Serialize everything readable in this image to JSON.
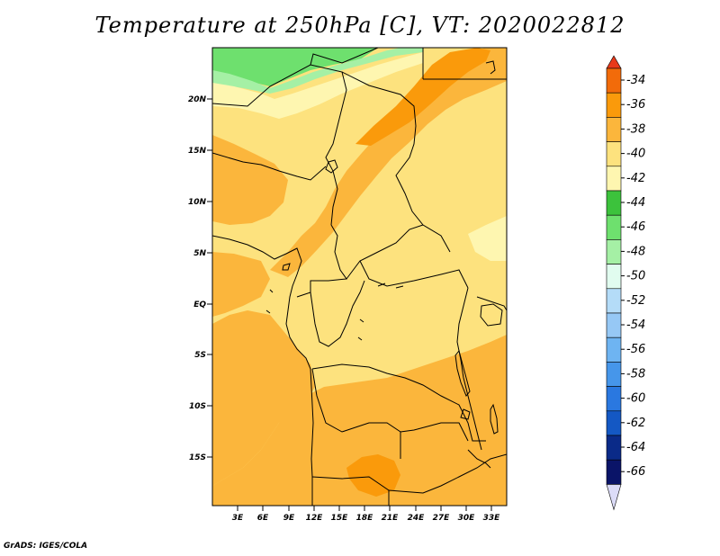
{
  "title": "Temperature at 250hPa [C], VT: 2020022812",
  "footer": "GrADS: IGES/COLA",
  "lat_ticks": [
    "20N",
    "15N",
    "10N",
    "5N",
    "EQ",
    "5S",
    "10S",
    "15S"
  ],
  "lon_ticks": [
    "3E",
    "6E",
    "9E",
    "12E",
    "15E",
    "18E",
    "21E",
    "24E",
    "27E",
    "30E",
    "33E"
  ],
  "colorbar": {
    "labels": [
      "-34",
      "-36",
      "-38",
      "-40",
      "-42",
      "-44",
      "-46",
      "-48",
      "-50",
      "-52",
      "-54",
      "-56",
      "-58",
      "-60",
      "-62",
      "-64",
      "-66"
    ],
    "colors": [
      "#e8391a",
      "#f26b0a",
      "#fa9a0b",
      "#fbb63c",
      "#fde27e",
      "#fef6b0",
      "#3cc23c",
      "#6ee06e",
      "#a5f0a5",
      "#e1fcef",
      "#b4dcf8",
      "#96c8f5",
      "#6eb4f2",
      "#4696ea",
      "#2a78e0",
      "#1458c4",
      "#0a2a88",
      "#0a1468"
    ],
    "top_triangle_color": "#e8391a",
    "bottom_triangle_color": "#dcdcf8"
  },
  "map": {
    "background_color": "#fde27e",
    "fields": [
      {
        "name": "green-north",
        "color": "#6ee06e"
      },
      {
        "name": "green-light-north",
        "color": "#a5f0a5"
      },
      {
        "name": "pale-north",
        "color": "#fef6b0"
      },
      {
        "name": "orange-band",
        "color": "#fbb63c"
      },
      {
        "name": "deep-orange-band",
        "color": "#fa9a0b"
      },
      {
        "name": "south-orange",
        "color": "#fbb63c"
      },
      {
        "name": "southwest-orange",
        "color": "#fbb63c"
      },
      {
        "name": "west-coast-orange",
        "color": "#fbb63c"
      },
      {
        "name": "south-deep-orange",
        "color": "#fa9a0b"
      },
      {
        "name": "west-orange",
        "color": "#fbb63c"
      },
      {
        "name": "east-pale",
        "color": "#fef6b0"
      }
    ]
  }
}
